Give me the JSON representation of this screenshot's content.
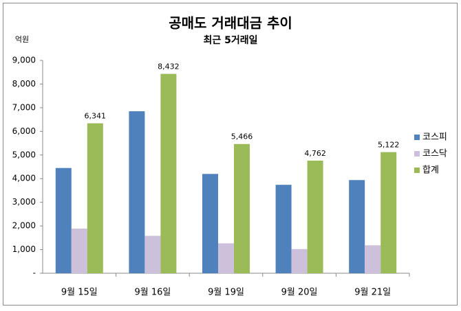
{
  "chart_data": {
    "type": "bar",
    "title": "공매도 거래대금 추이",
    "subtitle": "최근 5거래일",
    "y_label": "억원",
    "categories": [
      "9월 15일",
      "9월 16일",
      "9월 19일",
      "9월 20일",
      "9월 21일"
    ],
    "series": [
      {
        "name": "코스피",
        "color": "#4f81bd",
        "values": [
          4451,
          6850,
          4200,
          3740,
          3940
        ]
      },
      {
        "name": "코스닥",
        "color": "#ccc0da",
        "values": [
          1890,
          1582,
          1266,
          1022,
          1182
        ]
      },
      {
        "name": "합계",
        "color": "#9bbb59",
        "values": [
          6341,
          8432,
          5466,
          4762,
          5122
        ],
        "value_labels": [
          "6,341",
          "8,432",
          "5,466",
          "4,762",
          "5,122"
        ]
      }
    ],
    "ylim": [
      0,
      9000
    ],
    "yticks": [
      {
        "value": 0,
        "label": "-"
      },
      {
        "value": 1000,
        "label": "1,000"
      },
      {
        "value": 2000,
        "label": "2,000"
      },
      {
        "value": 3000,
        "label": "3,000"
      },
      {
        "value": 4000,
        "label": "4,000"
      },
      {
        "value": 5000,
        "label": "5,000"
      },
      {
        "value": 6000,
        "label": "6,000"
      },
      {
        "value": 7000,
        "label": "7,000"
      },
      {
        "value": 8000,
        "label": "8,000"
      },
      {
        "value": 9000,
        "label": "9,000"
      }
    ],
    "grid": false,
    "legend": "right"
  }
}
